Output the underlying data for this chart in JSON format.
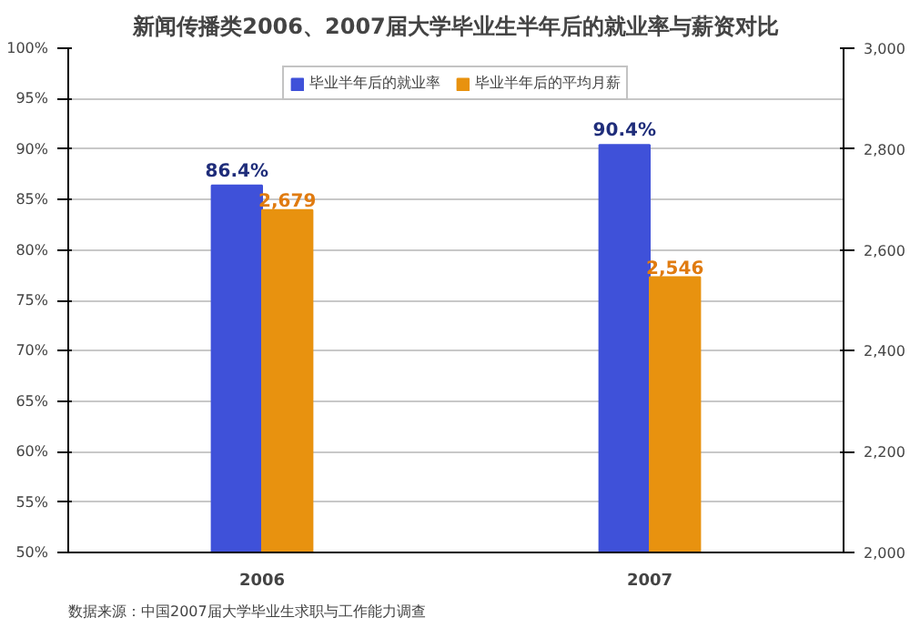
{
  "chart_data": {
    "type": "bar",
    "title": "新闻传播类2006、2007届大学毕业生半年后的就业率与薪资对比",
    "categories": [
      "2006",
      "2007"
    ],
    "series": [
      {
        "name": "毕业半年后的就业率",
        "color": "#3f51d9",
        "values": [
          86.4,
          90.4
        ],
        "value_labels": [
          "86.4%",
          "90.4%"
        ]
      },
      {
        "name": "毕业半年后的平均月薪",
        "color": "#e8920f",
        "values": [
          2679,
          2546
        ],
        "axis": "y2",
        "value_labels": [
          "2,679",
          "2,546"
        ]
      }
    ],
    "ylim": [
      50,
      100
    ],
    "yticks": [
      {
        "value": 50,
        "label": "50%"
      },
      {
        "value": 55,
        "label": "55%"
      },
      {
        "value": 60,
        "label": "60%"
      },
      {
        "value": 65,
        "label": "65%"
      },
      {
        "value": 70,
        "label": "70%"
      },
      {
        "value": 75,
        "label": "75%"
      },
      {
        "value": 80,
        "label": "80%"
      },
      {
        "value": 85,
        "label": "85%"
      },
      {
        "value": 90,
        "label": "90%"
      },
      {
        "value": 95,
        "label": "95%"
      },
      {
        "value": 100,
        "label": "100%"
      }
    ],
    "y2lim": [
      2000,
      3000
    ],
    "y2ticks": [
      {
        "value": 2000,
        "label": "2,000"
      },
      {
        "value": 2200,
        "label": "2,200"
      },
      {
        "value": 2400,
        "label": "2,400"
      },
      {
        "value": 2600,
        "label": "2,600"
      },
      {
        "value": 2800,
        "label": "2,800"
      },
      {
        "value": 3000,
        "label": "3,000"
      }
    ],
    "grid": "y",
    "legend": "top",
    "annotations": [
      "数据来源：中国2007届大学毕业生求职与工作能力调查"
    ]
  }
}
